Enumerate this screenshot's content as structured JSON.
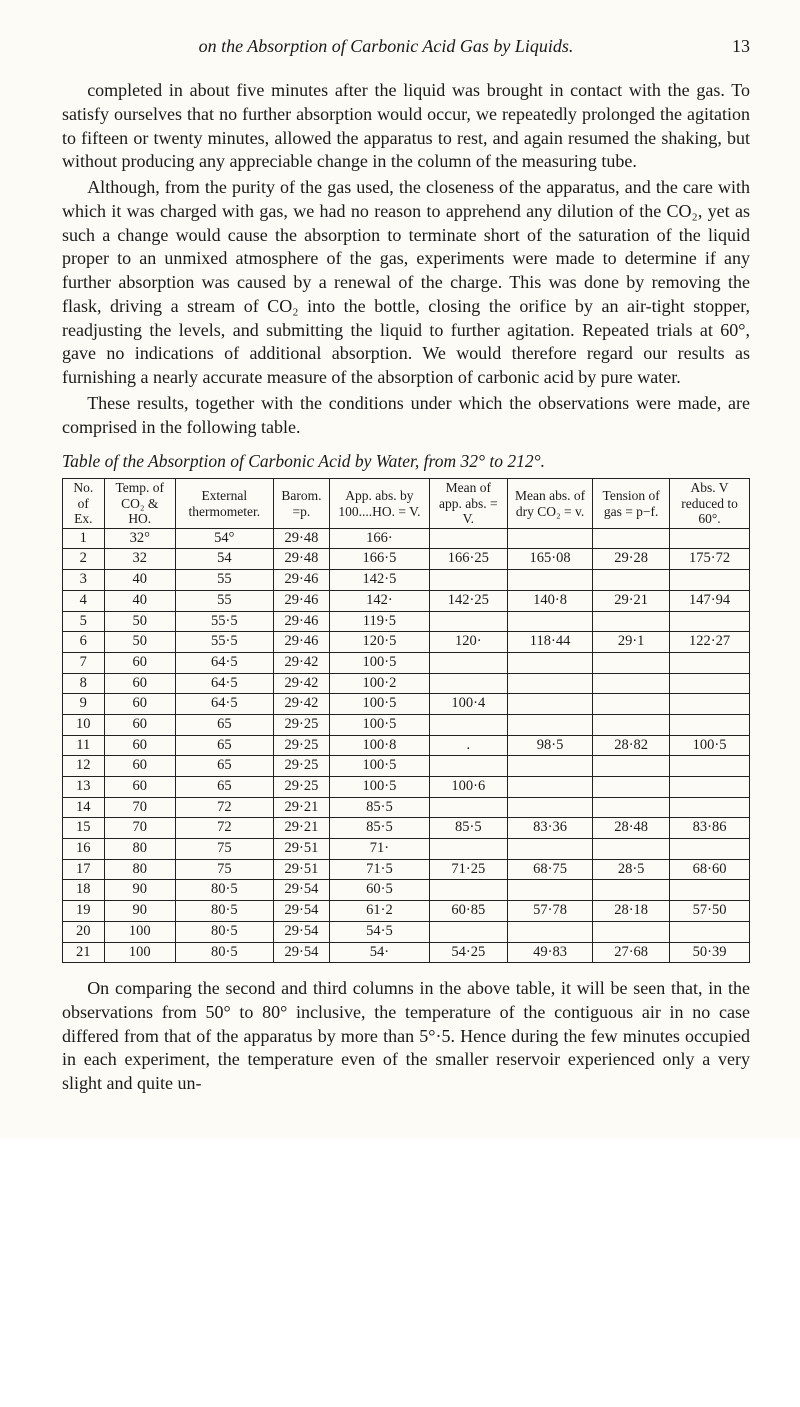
{
  "page_number": "13",
  "running_title": "on the Absorption of Carbonic Acid Gas by Liquids.",
  "paragraphs": [
    "completed in about five minutes after the liquid was brought in contact with the gas. To satisfy ourselves that no further absorption would occur, we repeatedly prolonged the agitation to fifteen or twenty minutes, allowed the apparatus to rest, and again resumed the shaking, but without producing any appreciable change in the column of the measuring tube.",
    "Although, from the purity of the gas used, the closeness of the apparatus, and the care with which it was charged with gas, we had no reason to apprehend any dilution of the CO₂, yet as such a change would cause the absorption to terminate short of the saturation of the liquid proper to an unmixed atmosphere of the gas, experiments were made to determine if any further absorption was caused by a renewal of the charge. This was done by removing the flask, driving a stream of CO₂ into the bottle, closing the orifice by an air-tight stopper, readjusting the levels, and submitting the liquid to further agitation. Repeated trials at 60°, gave no indications of additional absorption. We would therefore regard our results as furnishing a nearly accurate measure of the absorption of carbonic acid by pure water.",
    "These results, together with the conditions under which the observations were made, are comprised in the following table."
  ],
  "table_title": "Table of the Absorption of Carbonic Acid by Water, from 32° to 212°.",
  "table": {
    "columns": [
      "No. of Ex.",
      "Temp. of CO₂ & HO.",
      "External thermometer.",
      "Barom. =p.",
      "App. abs. by 100....HO. = V.",
      "Mean of app. abs. = V.",
      "Mean abs. of dry CO₂ = v.",
      "Tension of gas = p−f.",
      "Abs. V reduced to 60°."
    ],
    "rows": [
      [
        "1",
        "32°",
        "54°",
        "29·48",
        "166·",
        "",
        "",
        "",
        ""
      ],
      [
        "2",
        "32",
        "54",
        "29·48",
        "166·5",
        "166·25",
        "165·08",
        "29·28",
        "175·72"
      ],
      [
        "3",
        "40",
        "55",
        "29·46",
        "142·5",
        "",
        "",
        "",
        ""
      ],
      [
        "4",
        "40",
        "55",
        "29·46",
        "142·",
        "142·25",
        "140·8",
        "29·21",
        "147·94"
      ],
      [
        "5",
        "50",
        "55·5",
        "29·46",
        "119·5",
        "",
        "",
        "",
        ""
      ],
      [
        "6",
        "50",
        "55·5",
        "29·46",
        "120·5",
        "120·",
        "118·44",
        "29·1",
        "122·27"
      ],
      [
        "7",
        "60",
        "64·5",
        "29·42",
        "100·5",
        "",
        "",
        "",
        ""
      ],
      [
        "8",
        "60",
        "64·5",
        "29·42",
        "100·2",
        "",
        "",
        "",
        ""
      ],
      [
        "9",
        "60",
        "64·5",
        "29·42",
        "100·5",
        "100·4",
        "",
        "",
        ""
      ],
      [
        "10",
        "60",
        "65",
        "29·25",
        "100·5",
        "",
        "",
        "",
        ""
      ],
      [
        "11",
        "60",
        "65",
        "29·25",
        "100·8",
        ".",
        "98·5",
        "28·82",
        "100·5"
      ],
      [
        "12",
        "60",
        "65",
        "29·25",
        "100·5",
        "",
        "",
        "",
        ""
      ],
      [
        "13",
        "60",
        "65",
        "29·25",
        "100·5",
        "100·6",
        "",
        "",
        ""
      ],
      [
        "14",
        "70",
        "72",
        "29·21",
        "85·5",
        "",
        "",
        "",
        ""
      ],
      [
        "15",
        "70",
        "72",
        "29·21",
        "85·5",
        "85·5",
        "83·36",
        "28·48",
        "83·86"
      ],
      [
        "16",
        "80",
        "75",
        "29·51",
        "71·",
        "",
        "",
        "",
        ""
      ],
      [
        "17",
        "80",
        "75",
        "29·51",
        "71·5",
        "71·25",
        "68·75",
        "28·5",
        "68·60"
      ],
      [
        "18",
        "90",
        "80·5",
        "29·54",
        "60·5",
        "",
        "",
        "",
        ""
      ],
      [
        "19",
        "90",
        "80·5",
        "29·54",
        "61·2",
        "60·85",
        "57·78",
        "28·18",
        "57·50"
      ],
      [
        "20",
        "100",
        "80·5",
        "29·54",
        "54·5",
        "",
        "",
        "",
        ""
      ],
      [
        "21",
        "100",
        "80·5",
        "29·54",
        "54·",
        "54·25",
        "49·83",
        "27·68",
        "50·39"
      ]
    ]
  },
  "closing_paragraph": "On comparing the second and third columns in the above table, it will be seen that, in the observations from 50° to 80° inclusive, the temperature of the contiguous air in no case differed from that of the apparatus by more than 5°·5. Hence during the few minutes occupied in each experiment, the temperature even of the smaller reservoir experienced only a very slight and quite un-"
}
